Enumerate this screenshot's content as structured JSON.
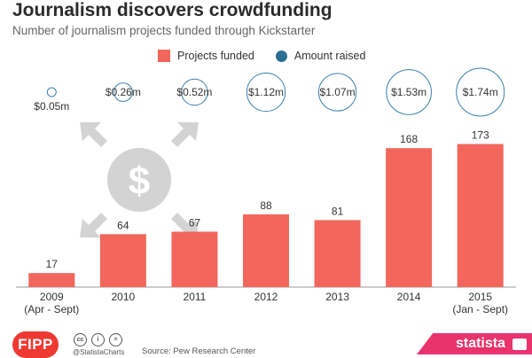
{
  "header": {
    "title": "Journalism discovers crowdfunding",
    "subtitle": "Number of journalism projects funded through Kickstarter"
  },
  "legend": {
    "projects_label": "Projects funded",
    "amount_label": "Amount raised"
  },
  "colors": {
    "bar": "#f2665c",
    "amount_dot": "#2d6e93",
    "bubble_outline": "#3d7fab",
    "icon_grey": "#d3d3d3",
    "axis": "#999999"
  },
  "icons": {
    "center": "dollar-coin-icon",
    "arrows": "inward-arrows-icon"
  },
  "chart_data": {
    "type": "bar",
    "title": "Journalism discovers crowdfunding",
    "categories": [
      "2009\n(Apr - Sept)",
      "2010",
      "2011",
      "2012",
      "2013",
      "2014",
      "2015\n(Jan - Sept)"
    ],
    "series": [
      {
        "name": "Projects funded",
        "values": [
          17,
          64,
          67,
          88,
          81,
          168,
          173
        ],
        "labels": [
          "17",
          "64",
          "67",
          "88",
          "81",
          "168",
          "173"
        ]
      },
      {
        "name": "Amount raised",
        "values": [
          0.05,
          0.26,
          0.52,
          1.12,
          1.07,
          1.53,
          1.74
        ],
        "labels": [
          "$0.05m",
          "$0.26m",
          "$0.52m",
          "$1.12m",
          "$1.07m",
          "$1.53m",
          "$1.74m"
        ]
      }
    ],
    "ylim": [
      0,
      180
    ],
    "grid": false,
    "legend_position": "top"
  },
  "footer": {
    "logo_text": "FIPP",
    "handle": "@StatistaCharts",
    "source": "Source: Pew Research Center",
    "brand": "statista"
  }
}
